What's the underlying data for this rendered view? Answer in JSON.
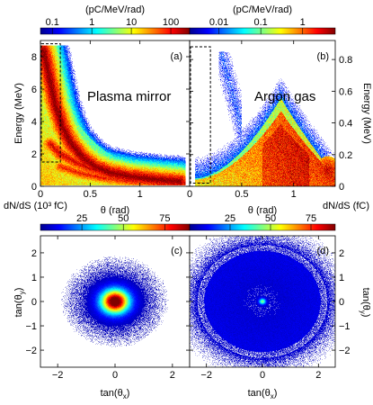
{
  "colors": {
    "jet": [
      "#00008f",
      "#0000ff",
      "#0080ff",
      "#00ffff",
      "#80ff80",
      "#ffff00",
      "#ff8000",
      "#ff0000",
      "#800000"
    ],
    "background": "#ffffff"
  },
  "chart_data": [
    {
      "panel": "a",
      "type": "heatmap",
      "tag": "(a)",
      "annotation": "Plasma mirror",
      "xlabel": "θ (rad)",
      "ylabel": "Energy (MeV)",
      "xlim": [
        0,
        1.5
      ],
      "ylim": [
        0,
        9
      ],
      "xticks": [
        0,
        0.5,
        1
      ],
      "xtick_labels": [
        "0",
        "0.5",
        "1"
      ],
      "yticks": [
        0,
        2,
        4,
        6,
        8
      ],
      "ytick_labels": [
        "0",
        "2",
        "4",
        "6",
        "8"
      ],
      "colorbar": {
        "label": "(pC/MeV/rad)",
        "scale": "log",
        "ticks": [
          "0.1",
          "1",
          "10",
          "100"
        ],
        "range": [
          0.05,
          300
        ]
      },
      "dashed_box": {
        "x": [
          0,
          0.2
        ],
        "y": [
          1.5,
          8.8
        ]
      },
      "ridges": [
        {
          "points": [
            [
              0.03,
              8.4
            ],
            [
              0.06,
              7.6
            ],
            [
              0.1,
              6.4
            ],
            [
              0.15,
              5.0
            ],
            [
              0.22,
              3.7
            ],
            [
              0.3,
              2.7
            ],
            [
              0.42,
              1.8
            ],
            [
              0.55,
              1.2
            ],
            [
              0.7,
              0.85
            ],
            [
              0.9,
              0.6
            ],
            [
              1.2,
              0.4
            ],
            [
              1.4,
              0.3
            ]
          ],
          "level": 2.6
        },
        {
          "points": [
            [
              0.1,
              2.6
            ],
            [
              0.2,
              2.0
            ],
            [
              0.35,
              1.5
            ],
            [
              0.5,
              1.1
            ],
            [
              0.7,
              0.75
            ],
            [
              0.95,
              0.5
            ],
            [
              1.2,
              0.3
            ],
            [
              1.45,
              0.2
            ]
          ],
          "level": 2.2
        },
        {
          "points": [
            [
              0.2,
              1.2
            ],
            [
              0.4,
              0.8
            ],
            [
              0.6,
              0.55
            ],
            [
              0.85,
              0.35
            ],
            [
              1.1,
              0.2
            ],
            [
              1.4,
              0.1
            ]
          ],
          "level": 2.0
        }
      ]
    },
    {
      "panel": "b",
      "type": "heatmap",
      "tag": "(b)",
      "annotation": "Argon gas",
      "xlabel": "θ (rad)",
      "ylabel": "Energy (MeV)",
      "xlim": [
        0,
        1.4
      ],
      "ylim": [
        0,
        0.92
      ],
      "xticks": [
        0,
        0.5,
        1
      ],
      "xtick_labels": [
        "0",
        "0.5",
        "1"
      ],
      "yticks": [
        0,
        0.2,
        0.4,
        0.6,
        0.8
      ],
      "ytick_labels": [
        "0",
        "0.2",
        "0.4",
        "0.6",
        "0.8"
      ],
      "colorbar": {
        "label": "(pC/MeV/rad)",
        "scale": "log",
        "ticks": [
          "0.01",
          "0.1",
          "1"
        ],
        "range": [
          0.002,
          6
        ]
      },
      "dashed_box": {
        "x": [
          0,
          0.2
        ],
        "y": [
          0.02,
          0.88
        ]
      },
      "hump": {
        "peak_theta": 0.88,
        "peak_energy": 0.56,
        "start_theta": 0.05,
        "end_theta": 1.4
      },
      "hot_spot": {
        "theta": 1.33,
        "energy": 0.1,
        "level": 3.2
      }
    },
    {
      "panel": "c",
      "type": "heatmap",
      "tag": "(c)",
      "xlabel": "tan(θ_x)",
      "ylabel": "tan(θ_y)",
      "xlim": [
        -2.6,
        2.6
      ],
      "ylim": [
        -2.7,
        2.7
      ],
      "xticks": [
        -2,
        0,
        2
      ],
      "yticks": [
        -2,
        -1,
        0,
        1,
        2
      ],
      "colorbar": {
        "label": "dN/dS (10³ fC)",
        "scale": "linear",
        "ticks": [
          25,
          50,
          75
        ],
        "range": [
          0,
          90
        ]
      },
      "spot": {
        "x": 0,
        "y": 0,
        "sigma": 0.32,
        "peak": 90
      }
    },
    {
      "panel": "d",
      "type": "heatmap",
      "tag": "(d)",
      "xlabel": "tan(θ_x)",
      "ylabel": "tan(θ_y)",
      "xlim": [
        -2.6,
        2.6
      ],
      "ylim": [
        -2.7,
        2.7
      ],
      "xticks": [
        -2,
        0,
        2
      ],
      "yticks": [
        -2,
        -1,
        0,
        1,
        2
      ],
      "colorbar": {
        "label": "dN/dS (fC)",
        "scale": "linear",
        "ticks": [
          25,
          50,
          75
        ],
        "range": [
          0,
          90
        ]
      },
      "ring": {
        "radius": 2.2,
        "width": 0.12
      },
      "spot": {
        "x": 0,
        "y": 0,
        "sigma": 0.08,
        "peak": 40
      }
    }
  ]
}
